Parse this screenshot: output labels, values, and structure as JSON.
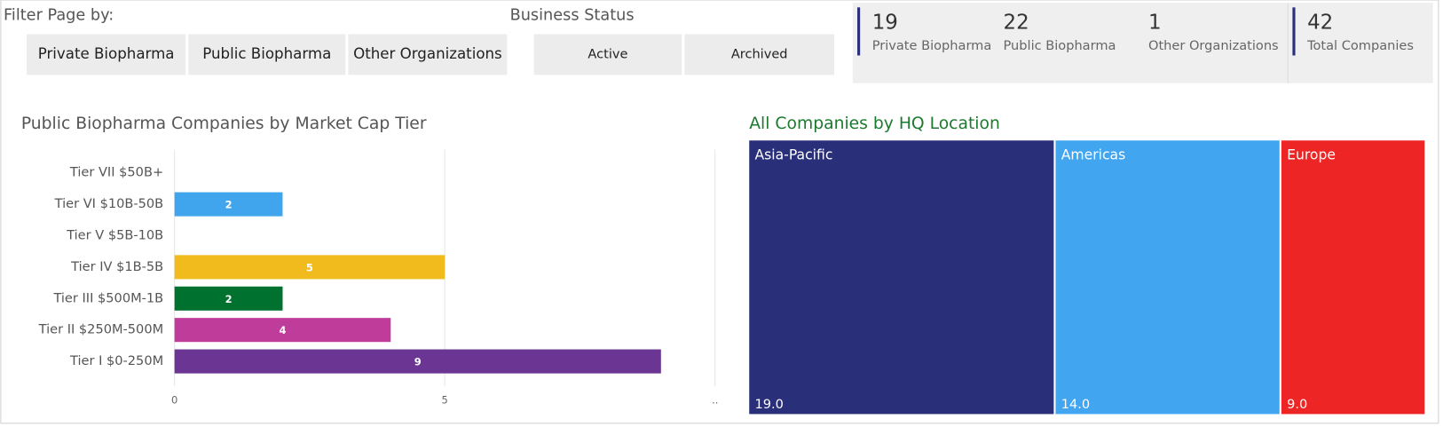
{
  "filters": {
    "label": "Filter Page by:",
    "options": [
      "Private Biopharma",
      "Public Biopharma",
      "Other Organizations"
    ]
  },
  "business_status": {
    "label": "Business Status",
    "options": [
      "Active",
      "Archived"
    ]
  },
  "cards": [
    {
      "value": 19,
      "label": "Private Biopharma"
    },
    {
      "value": 22,
      "label": "Public Biopharma"
    },
    {
      "value": 1,
      "label": "Other Organizations"
    },
    {
      "value": 42,
      "label": "Total Companies"
    }
  ],
  "chart_data": [
    {
      "type": "bar",
      "orientation": "horizontal",
      "title": "Public Biopharma Companies by Market Cap Tier",
      "categories": [
        "Tier VII $50B+",
        "Tier VI $10B-50B",
        "Tier V $5B-10B",
        "Tier IV $1B-5B",
        "Tier III $500M-1B",
        "Tier II $250M-500M",
        "Tier I $0-250M"
      ],
      "values": [
        null,
        2,
        null,
        5,
        2,
        4,
        9
      ],
      "colors": [
        "#41a5ee",
        "#41a5ee",
        "#f2bb1d",
        "#f2bb1d",
        "#00712e",
        "#c03c9b",
        "#6a3593"
      ],
      "xlim": [
        0,
        10
      ],
      "xticks": [
        0,
        5,
        {
          "value": 10,
          "label": ".."
        }
      ],
      "grid": true
    },
    {
      "type": "treemap",
      "title": "All Companies by HQ Location",
      "categories": [
        "Asia-Pacific",
        "Americas",
        "Europe"
      ],
      "values": [
        19,
        14,
        9
      ],
      "value_labels": [
        "19.0",
        "14.0",
        "9.0"
      ],
      "colors": [
        "#2a2f7a",
        "#41a5f0",
        "#ee2525"
      ]
    }
  ]
}
